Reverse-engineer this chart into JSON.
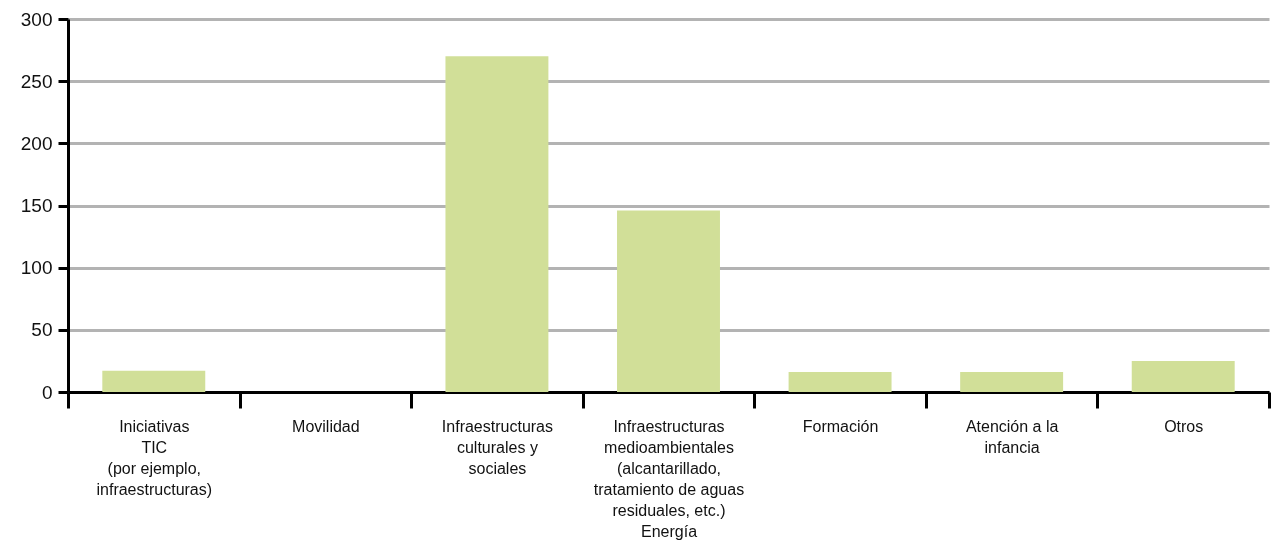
{
  "chart_data": {
    "type": "bar",
    "categories": [
      "Iniciativas\nTIC\n(por ejemplo,\ninfraestructuras)",
      "Movilidad",
      "Infraestructuras\nculturales y\nsociales",
      "Infraestructuras\nmedioambientales\n(alcantarillado,\ntratamiento de aguas\nresiduales, etc.)\nEnergía",
      "Formación",
      "Atención a la\ninfancia",
      "Otros"
    ],
    "values": [
      17,
      null,
      270,
      146,
      16,
      16,
      25
    ],
    "color": "#d1df98",
    "ylim": [
      0,
      300
    ],
    "yticks": [
      0,
      50,
      100,
      150,
      200,
      250,
      300
    ],
    "grid": "y"
  }
}
